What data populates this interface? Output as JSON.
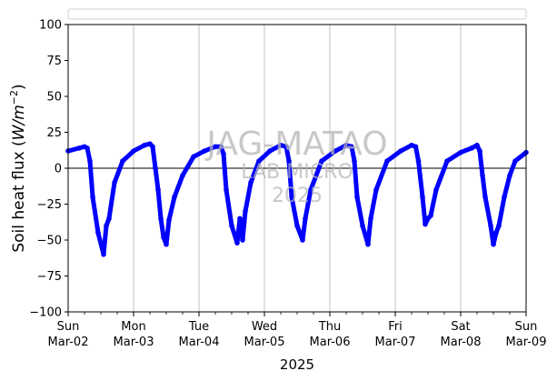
{
  "chart_data": {
    "type": "scatter",
    "title": "",
    "xlabel": "2025",
    "ylabel": "Soil heat flux (W/m⁻²)",
    "ylabel_parts": {
      "text": "Soil heat flux (",
      "var": "W/m",
      "exp": "−2",
      "close": ")"
    },
    "ylim": [
      -100,
      100
    ],
    "yticks": [
      -100,
      -75,
      -50,
      -25,
      0,
      25,
      50,
      75,
      100
    ],
    "ytick_labels": [
      "−100",
      "−75",
      "−50",
      "−25",
      "0",
      "25",
      "50",
      "75",
      "100"
    ],
    "xlim_days": [
      0,
      7
    ],
    "xticks": [
      {
        "day": "Sun",
        "date": "Mar-02"
      },
      {
        "day": "Mon",
        "date": "Mar-03"
      },
      {
        "day": "Tue",
        "date": "Mar-04"
      },
      {
        "day": "Wed",
        "date": "Mar-05"
      },
      {
        "day": "Thu",
        "date": "Mar-06"
      },
      {
        "day": "Fri",
        "date": "Mar-07"
      },
      {
        "day": "Sat",
        "date": "Mar-08"
      },
      {
        "day": "Sun",
        "date": "Mar-09"
      }
    ],
    "grid": "vertical",
    "zero_line": true,
    "legend": "top (empty)",
    "series_color": "#0000ff",
    "series": [
      {
        "name": "",
        "points": [
          [
            "Mar-02 00:00",
            12
          ],
          [
            "Mar-02 04:00",
            14
          ],
          [
            "Mar-02 06:00",
            15
          ],
          [
            "Mar-02 07:00",
            14
          ],
          [
            "Mar-02 08:00",
            5
          ],
          [
            "Mar-02 09:00",
            -20
          ],
          [
            "Mar-02 11:00",
            -45
          ],
          [
            "Mar-02 13:00",
            -60
          ],
          [
            "Mar-02 14:00",
            -40
          ],
          [
            "Mar-02 15:00",
            -35
          ],
          [
            "Mar-02 17:00",
            -10
          ],
          [
            "Mar-02 20:00",
            5
          ],
          [
            "Mar-03 00:00",
            12
          ],
          [
            "Mar-03 04:00",
            16
          ],
          [
            "Mar-03 06:00",
            17
          ],
          [
            "Mar-03 07:00",
            15
          ],
          [
            "Mar-03 08:00",
            0
          ],
          [
            "Mar-03 09:00",
            -15
          ],
          [
            "Mar-03 10:00",
            -35
          ],
          [
            "Mar-03 11:00",
            -48
          ],
          [
            "Mar-03 12:00",
            -53
          ],
          [
            "Mar-03 13:00",
            -36
          ],
          [
            "Mar-03 15:00",
            -20
          ],
          [
            "Mar-03 18:00",
            -5
          ],
          [
            "Mar-03 22:00",
            8
          ],
          [
            "Mar-04 02:00",
            12
          ],
          [
            "Mar-04 06:00",
            15
          ],
          [
            "Mar-04 08:00",
            15
          ],
          [
            "Mar-04 09:00",
            10
          ],
          [
            "Mar-04 10:00",
            -15
          ],
          [
            "Mar-04 12:00",
            -40
          ],
          [
            "Mar-04 14:00",
            -52
          ],
          [
            "Mar-04 15:00",
            -35
          ],
          [
            "Mar-04 16:00",
            -50
          ],
          [
            "Mar-04 17:00",
            -30
          ],
          [
            "Mar-04 19:00",
            -10
          ],
          [
            "Mar-04 22:00",
            5
          ],
          [
            "Mar-05 02:00",
            12
          ],
          [
            "Mar-05 06:00",
            16
          ],
          [
            "Mar-05 08:00",
            15
          ],
          [
            "Mar-05 09:00",
            5
          ],
          [
            "Mar-05 10:00",
            -20
          ],
          [
            "Mar-05 12:00",
            -40
          ],
          [
            "Mar-05 14:00",
            -50
          ],
          [
            "Mar-05 15:00",
            -35
          ],
          [
            "Mar-05 17:00",
            -15
          ],
          [
            "Mar-05 21:00",
            5
          ],
          [
            "Mar-06 02:00",
            12
          ],
          [
            "Mar-06 06:00",
            16
          ],
          [
            "Mar-06 08:00",
            15
          ],
          [
            "Mar-06 09:00",
            5
          ],
          [
            "Mar-06 10:00",
            -20
          ],
          [
            "Mar-06 12:00",
            -40
          ],
          [
            "Mar-06 14:00",
            -53
          ],
          [
            "Mar-06 15:00",
            -35
          ],
          [
            "Mar-06 17:00",
            -15
          ],
          [
            "Mar-06 21:00",
            5
          ],
          [
            "Mar-07 02:00",
            12
          ],
          [
            "Mar-07 06:00",
            16
          ],
          [
            "Mar-07 07:30",
            15
          ],
          [
            "Mar-07 08:30",
            5
          ],
          [
            "Mar-07 10:00",
            -20
          ],
          [
            "Mar-07 11:00",
            -39
          ],
          [
            "Mar-07 12:00",
            -35
          ],
          [
            "Mar-07 13:00",
            -33
          ],
          [
            "Mar-07 15:00",
            -15
          ],
          [
            "Mar-07 19:00",
            5
          ],
          [
            "Mar-08 00:00",
            11
          ],
          [
            "Mar-08 04:00",
            14
          ],
          [
            "Mar-08 06:00",
            16
          ],
          [
            "Mar-08 07:00",
            12
          ],
          [
            "Mar-08 08:00",
            -5
          ],
          [
            "Mar-08 09:00",
            -20
          ],
          [
            "Mar-08 11:00",
            -40
          ],
          [
            "Mar-08 12:00",
            -53
          ],
          [
            "Mar-08 13:00",
            -45
          ],
          [
            "Mar-08 14:00",
            -40
          ],
          [
            "Mar-08 16:00",
            -20
          ],
          [
            "Mar-08 18:00",
            -5
          ],
          [
            "Mar-08 20:00",
            5
          ],
          [
            "Mar-09 00:00",
            11
          ]
        ]
      }
    ]
  },
  "watermark": {
    "line1": "JAG-MATAO",
    "line2": "LAB MICRO",
    "line3": "2025"
  }
}
